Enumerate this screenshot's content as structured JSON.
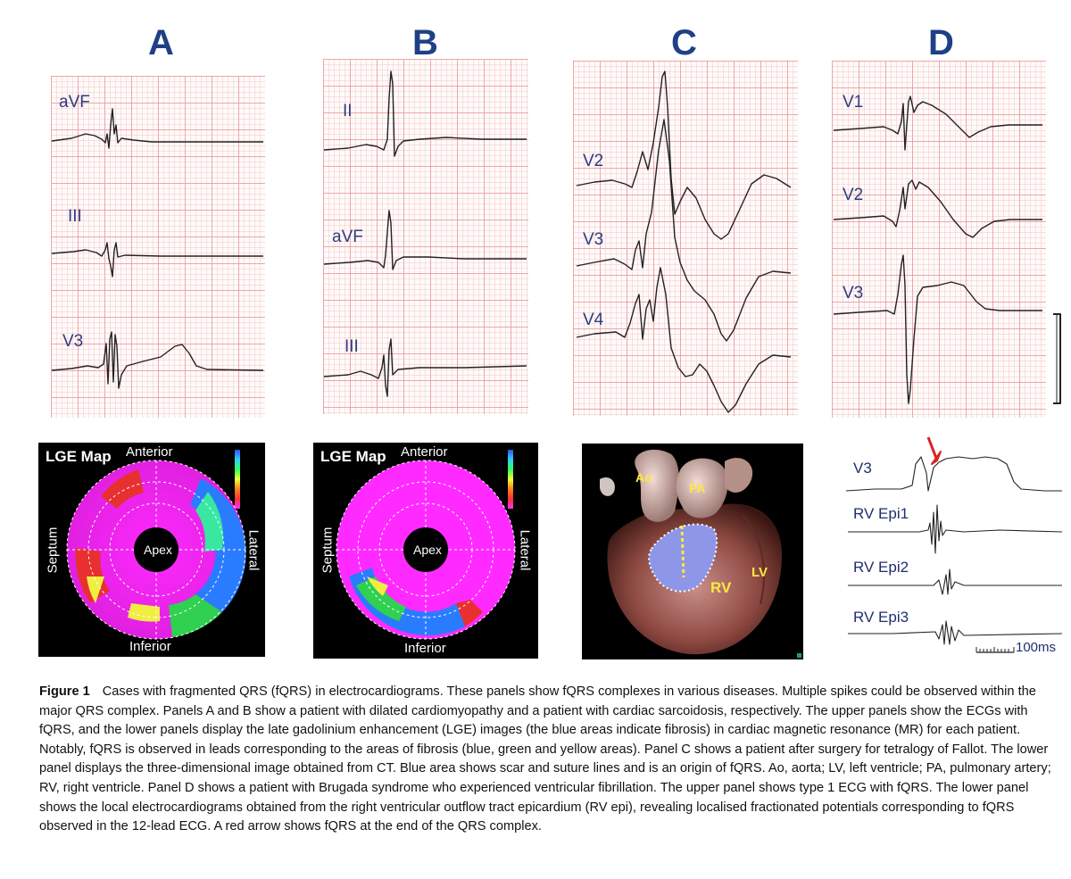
{
  "panels": {
    "a": {
      "letter": "A",
      "leads": [
        "aVF",
        "III",
        "V3"
      ]
    },
    "b": {
      "letter": "B",
      "leads": [
        "II",
        "aVF",
        "III"
      ]
    },
    "c": {
      "letter": "C",
      "leads": [
        "V2",
        "V3",
        "V4"
      ]
    },
    "d": {
      "letter": "D",
      "leads": [
        "V1",
        "V2",
        "V3"
      ]
    }
  },
  "lge": {
    "title": "LGE Map",
    "anterior": "Anterior",
    "inferior": "Inferior",
    "septum": "Septum",
    "lateral": "Lateral",
    "apex": "Apex"
  },
  "ct": {
    "ao": "Ao",
    "pa": "PA",
    "rv": "RV",
    "lv": "LV"
  },
  "epi": {
    "leads": [
      "V3",
      "RV Epi1",
      "RV Epi2",
      "RV Epi3"
    ],
    "scale_label": "100ms"
  },
  "colors": {
    "panel_letter": "#1f3f86",
    "grid": "#e89696",
    "arrow": "#e02020",
    "scar": "#8e96e8"
  },
  "caption": {
    "label": "Figure 1",
    "text": "Cases with fragmented QRS (fQRS) in electrocardiograms. These panels show fQRS complexes in various diseases. Multiple spikes could be observed within the major QRS complex. Panels A and B show a patient with dilated cardiomyopathy and a patient with cardiac sarcoidosis, respectively. The upper panels show the ECGs with fQRS, and the lower panels display the late gadolinium enhancement (LGE) images (the blue areas indicate fibrosis) in cardiac magnetic resonance (MR) for each patient. Notably, fQRS is observed in leads corresponding to the areas of fibrosis (blue, green and yellow areas). Panel C shows a patient after surgery for tetralogy of Fallot. The lower panel displays the three-dimensional image obtained from CT. Blue area shows scar and suture lines and is an origin of fQRS. Ao, aorta; LV, left ventricle; PA, pulmonary artery; RV, right ventricle. Panel D shows a patient with Brugada syndrome who experienced ventricular fibrillation. The upper panel shows type 1 ECG with fQRS. The lower panel shows the local electrocardiograms obtained from the right ventricular outflow tract epicardium (RV epi), revealing localised fractionated potentials corresponding to fQRS observed in the 12-lead ECG. A red arrow shows fQRS at the end of the QRS complex."
  }
}
